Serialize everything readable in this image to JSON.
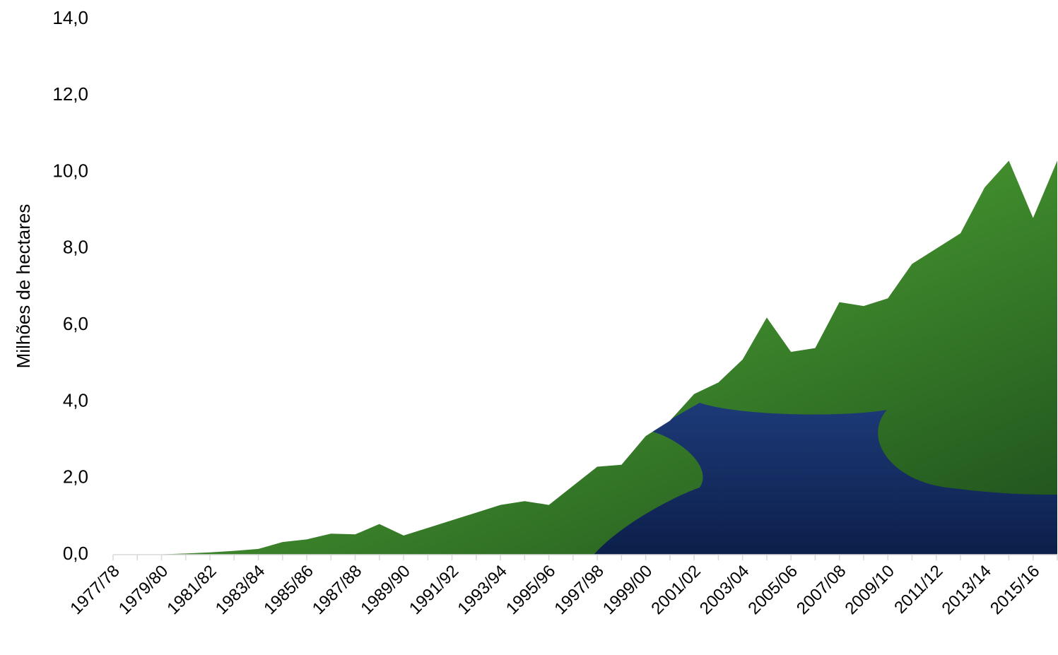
{
  "chart_data": {
    "type": "area",
    "y_label": "Milhões de hectares",
    "categories": [
      "1977/78",
      null,
      "1979/80",
      null,
      "1981/82",
      null,
      "1983/84",
      null,
      "1985/86",
      null,
      "1987/88",
      null,
      "1989/90",
      null,
      "1991/92",
      null,
      "1993/94",
      null,
      "1995/96",
      null,
      "1997/98",
      null,
      "1999/00",
      null,
      "2001/02",
      null,
      "2003/04",
      null,
      "2005/06",
      null,
      "2007/08",
      null,
      "2009/10",
      null,
      "2011/12",
      null,
      "2013/14",
      null,
      "2015/16",
      null
    ],
    "series": [
      {
        "color": "#3f7d2a",
        "values": [
          0,
          0,
          0.01,
          0.03,
          0.06,
          0.1,
          0.15,
          0.33,
          0.4,
          0.55,
          0.53,
          0.8,
          0.5,
          0.7,
          0.9,
          1.1,
          1.3,
          1.4,
          1.3,
          1.8,
          2.3,
          2.35,
          3.1,
          3.5,
          4.2,
          4.5,
          5.1,
          6.2,
          5.3,
          5.4,
          6.6,
          6.5,
          6.7,
          7.6,
          8.0,
          8.4,
          9.6,
          10.3,
          8.8,
          10.3
        ]
      }
    ],
    "ylim": [
      0,
      14
    ],
    "yticks": [
      {
        "value": 0,
        "label": "0,0"
      },
      {
        "value": 2,
        "label": "2,0"
      },
      {
        "value": 4,
        "label": "4,0"
      },
      {
        "value": 6,
        "label": "6,0"
      },
      {
        "value": 8,
        "label": "8,0"
      },
      {
        "value": 10,
        "label": "10,0"
      },
      {
        "value": 12,
        "label": "12,0"
      },
      {
        "value": 14,
        "label": "14,0"
      }
    ],
    "grid": false
  }
}
